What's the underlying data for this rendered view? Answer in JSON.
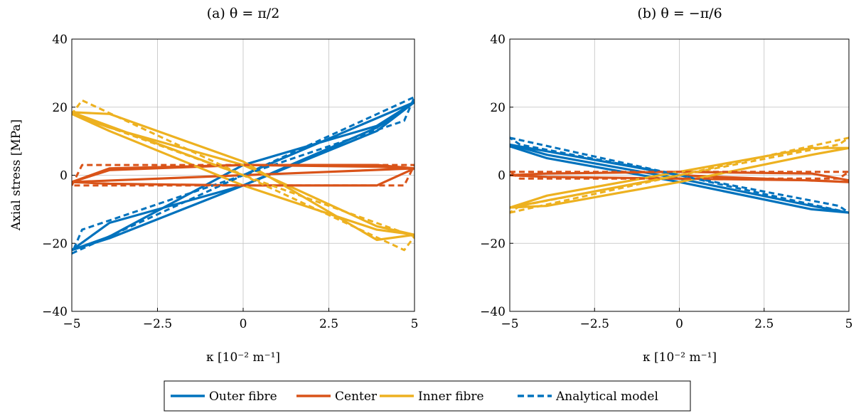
{
  "colors": {
    "outer": "#0072BD",
    "center": "#D95319",
    "inner": "#EDB120",
    "grid": "#bfbfbf"
  },
  "legend": {
    "placement": "bottom-center",
    "entries": [
      {
        "label": "Outer fibre",
        "color": "#0072BD",
        "style": "solid"
      },
      {
        "label": "Center",
        "color": "#D95319",
        "style": "solid"
      },
      {
        "label": "Inner fibre",
        "color": "#EDB120",
        "style": "solid"
      },
      {
        "label": "Analytical model",
        "color": "#0072BD",
        "style": "dashed"
      }
    ]
  },
  "chart_data": [
    {
      "type": "line",
      "title": "(a) θ = π/2",
      "xlabel": "κ [10⁻² m⁻¹]",
      "ylabel": "Axial stress [MPa]",
      "xlim": [
        -5,
        5
      ],
      "ylim": [
        -40,
        40
      ],
      "xticks": [
        -5,
        -2.5,
        0,
        2.5,
        5
      ],
      "xtick_labels": [
        "−5",
        "−2.5",
        "0",
        "2.5",
        "5"
      ],
      "yticks": [
        -40,
        -20,
        0,
        20,
        40
      ],
      "ytick_labels": [
        "−40",
        "−20",
        "0",
        "20",
        "40"
      ],
      "grid": true,
      "series": [
        {
          "name": "Outer fibre",
          "style": "solid",
          "color": "#0072BD",
          "x": [
            0,
            5,
            3.9,
            0,
            -3.9,
            -5,
            -3.9,
            0,
            3.9,
            5,
            3.9,
            0,
            -3.9,
            -5
          ],
          "y": [
            0,
            21.5,
            13,
            -3,
            -14,
            -22,
            -18.5,
            -3,
            14,
            21.5,
            14.5,
            3,
            -18,
            -22
          ]
        },
        {
          "name": "Center",
          "style": "solid",
          "color": "#D95319",
          "x": [
            0,
            5,
            3.9,
            0,
            -3.9,
            -5,
            -3.9,
            0,
            3.9,
            5,
            3.9,
            0,
            -3.9,
            -5,
            5
          ],
          "y": [
            0,
            2,
            3,
            3,
            2,
            -2,
            -2.5,
            -3,
            -3,
            2,
            2.5,
            3,
            1.5,
            -2,
            2
          ]
        },
        {
          "name": "Inner fibre",
          "style": "solid",
          "color": "#EDB120",
          "x": [
            0,
            -5,
            -3.9,
            0,
            3.9,
            5,
            3.9,
            0,
            -3.9,
            -5,
            -3.9,
            0,
            3.9,
            5
          ],
          "y": [
            0,
            18.5,
            18,
            4,
            -19,
            -17.5,
            -16,
            -3,
            13,
            18,
            14,
            3,
            -15,
            -17.5
          ]
        },
        {
          "name": "Analytical model",
          "style": "dashed",
          "color": "#0072BD",
          "x": [
            -5,
            5,
            4.7,
            -4.7,
            -5
          ],
          "y": [
            -23,
            23,
            16,
            -16,
            -23
          ]
        },
        {
          "name": "",
          "style": "dashed",
          "color": "#D95319",
          "x": [
            -5,
            -4.7,
            5,
            4.7,
            -4.7,
            -5
          ],
          "y": [
            -3,
            3,
            3,
            -3,
            -3,
            -3
          ]
        },
        {
          "name": "",
          "style": "dashed",
          "color": "#EDB120",
          "x": [
            -5,
            5,
            4.7,
            -4.7,
            -5
          ],
          "y": [
            18,
            -18,
            -22,
            22,
            18
          ]
        }
      ]
    },
    {
      "type": "line",
      "title": "(b) θ = −π/6",
      "xlabel": "κ [10⁻² m⁻¹]",
      "ylabel": "",
      "xlim": [
        -5,
        5
      ],
      "ylim": [
        -40,
        40
      ],
      "xticks": [
        -5,
        -2.5,
        0,
        2.5,
        5
      ],
      "xtick_labels": [
        "−5",
        "−2.5",
        "0",
        "2.5",
        "5"
      ],
      "yticks": [
        -40,
        -20,
        0,
        20,
        40
      ],
      "ytick_labels": [
        "−40",
        "−20",
        "0",
        "20",
        "40"
      ],
      "grid": true,
      "series": [
        {
          "name": "Outer fibre",
          "style": "solid",
          "color": "#0072BD",
          "x": [
            0,
            -5,
            -3.9,
            0,
            3.9,
            5,
            3.9,
            0,
            -3.9,
            -5
          ],
          "y": [
            0,
            9,
            6,
            -1,
            -9,
            -11,
            -10,
            -2,
            5,
            8.5
          ]
        },
        {
          "name": "Center",
          "style": "solid",
          "color": "#D95319",
          "x": [
            0,
            5,
            3.9,
            0,
            -3.9,
            -5,
            -3.9,
            0,
            3.9,
            5
          ],
          "y": [
            0,
            -2,
            -1.5,
            -1,
            -0.5,
            0,
            0.5,
            1,
            0.5,
            -1.5
          ]
        },
        {
          "name": "Inner fibre",
          "style": "solid",
          "color": "#EDB120",
          "x": [
            0,
            -5,
            -3.9,
            0,
            3.9,
            5,
            3.9,
            0,
            -3.9,
            -5
          ],
          "y": [
            0,
            -9.5,
            -9,
            -2,
            6,
            8,
            8,
            1,
            -6,
            -9.5
          ]
        },
        {
          "name": "Analytical model",
          "style": "dashed",
          "color": "#0072BD",
          "x": [
            -5,
            5,
            4.7,
            -4.7,
            -5
          ],
          "y": [
            11,
            -11,
            -9,
            9,
            11
          ]
        },
        {
          "name": "",
          "style": "dashed",
          "color": "#D95319",
          "x": [
            -5,
            5,
            4.7,
            -4.7,
            -5
          ],
          "y": [
            1,
            1,
            -1,
            -1,
            1
          ]
        },
        {
          "name": "",
          "style": "dashed",
          "color": "#EDB120",
          "x": [
            -5,
            5,
            4.7,
            -4.7,
            -5
          ],
          "y": [
            -11,
            11,
            9,
            -9,
            -11
          ]
        }
      ]
    }
  ]
}
